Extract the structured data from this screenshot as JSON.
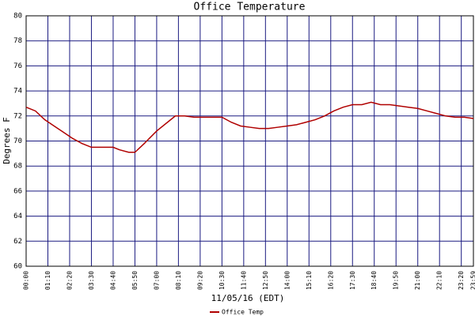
{
  "chart_data": {
    "type": "line",
    "title": "Office Temperature",
    "y_label": "Degrees F",
    "x_label": "11/05/16 (EDT)",
    "x": [
      "00:00",
      "00:30",
      "01:00",
      "01:30",
      "02:00",
      "02:30",
      "03:00",
      "03:30",
      "04:00",
      "04:40",
      "05:00",
      "05:30",
      "05:50",
      "06:20",
      "07:00",
      "07:40",
      "08:00",
      "08:30",
      "09:00",
      "10:00",
      "10:30",
      "11:00",
      "11:30",
      "12:00",
      "12:30",
      "13:00",
      "13:30",
      "14:00",
      "14:30",
      "15:00",
      "15:30",
      "16:00",
      "16:30",
      "17:00",
      "17:30",
      "18:00",
      "18:30",
      "19:00",
      "19:30",
      "20:00",
      "20:30",
      "21:00",
      "21:30",
      "22:00",
      "22:30",
      "23:00",
      "23:30",
      "23:59"
    ],
    "series": [
      {
        "name": "Office Temp",
        "color": "#b00000",
        "values": [
          72.7,
          72.4,
          71.7,
          71.2,
          70.7,
          70.2,
          69.8,
          69.5,
          69.5,
          69.5,
          69.3,
          69.1,
          69.1,
          69.8,
          70.8,
          71.6,
          72.0,
          72.0,
          71.9,
          71.9,
          71.9,
          71.5,
          71.2,
          71.1,
          71.0,
          71.0,
          71.1,
          71.2,
          71.3,
          71.5,
          71.7,
          72.0,
          72.4,
          72.7,
          72.9,
          72.9,
          73.1,
          72.9,
          72.9,
          72.8,
          72.7,
          72.6,
          72.4,
          72.2,
          72.0,
          71.9,
          71.9,
          71.8
        ]
      }
    ],
    "xlim": [
      "00:00",
      "23:59"
    ],
    "xticks": [
      "00:00",
      "01:10",
      "02:20",
      "03:30",
      "04:40",
      "05:50",
      "07:00",
      "08:10",
      "09:20",
      "10:30",
      "11:40",
      "12:50",
      "14:00",
      "15:10",
      "16:20",
      "17:30",
      "18:40",
      "19:50",
      "21:00",
      "22:10",
      "23:20",
      "23:59"
    ],
    "ylim": [
      60,
      80
    ],
    "yticks": [
      60,
      62,
      64,
      66,
      68,
      70,
      72,
      74,
      76,
      78,
      80
    ],
    "grid": true,
    "legend": "bottom"
  }
}
